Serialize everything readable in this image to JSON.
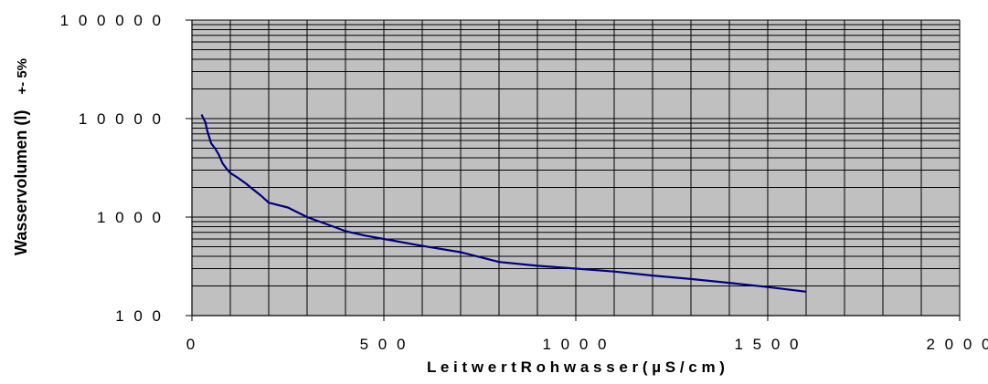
{
  "chart_data": {
    "type": "line",
    "title": "",
    "xlabel": "L e i t w e r t   R o h w a s s e r   ( µ S / c m )",
    "ylabel": "Wasservolumen (l)",
    "ylabel_suffix": "+- 5%",
    "xlim": [
      0,
      2000
    ],
    "ylim": [
      100,
      100000
    ],
    "yscale": "log",
    "grid": true,
    "legend": "none",
    "x_ticks": [
      0,
      500,
      1000,
      1500,
      2000
    ],
    "x_tick_labels": [
      "0",
      "5 0 0",
      "1 0 0 0",
      "1 5 0 0",
      "2 0 0 0"
    ],
    "y_ticks": [
      100,
      1000,
      10000,
      100000
    ],
    "y_tick_labels": [
      "1 0 0",
      "1 0 0 0",
      "1 0 0 0 0",
      "1 0 0 0 0 0"
    ],
    "series": [
      {
        "x": [
          25,
          30,
          35,
          40,
          45,
          50,
          60,
          70,
          80,
          90,
          100,
          120,
          140,
          160,
          180,
          200,
          250,
          300,
          350,
          400,
          450,
          500,
          600,
          700,
          800,
          900,
          1000,
          1100,
          1200,
          1300,
          1400,
          1500,
          1600
        ],
        "y": [
          11000,
          10000,
          9200,
          7500,
          6500,
          5600,
          5000,
          4300,
          3500,
          3100,
          2800,
          2500,
          2200,
          1900,
          1650,
          1400,
          1250,
          1000,
          850,
          720,
          650,
          600,
          510,
          440,
          350,
          320,
          300,
          280,
          255,
          235,
          215,
          195,
          175
        ]
      }
    ],
    "colors": {
      "plot_bg": "#c0c0c0",
      "grid": "#000000",
      "line": "#000080"
    }
  }
}
